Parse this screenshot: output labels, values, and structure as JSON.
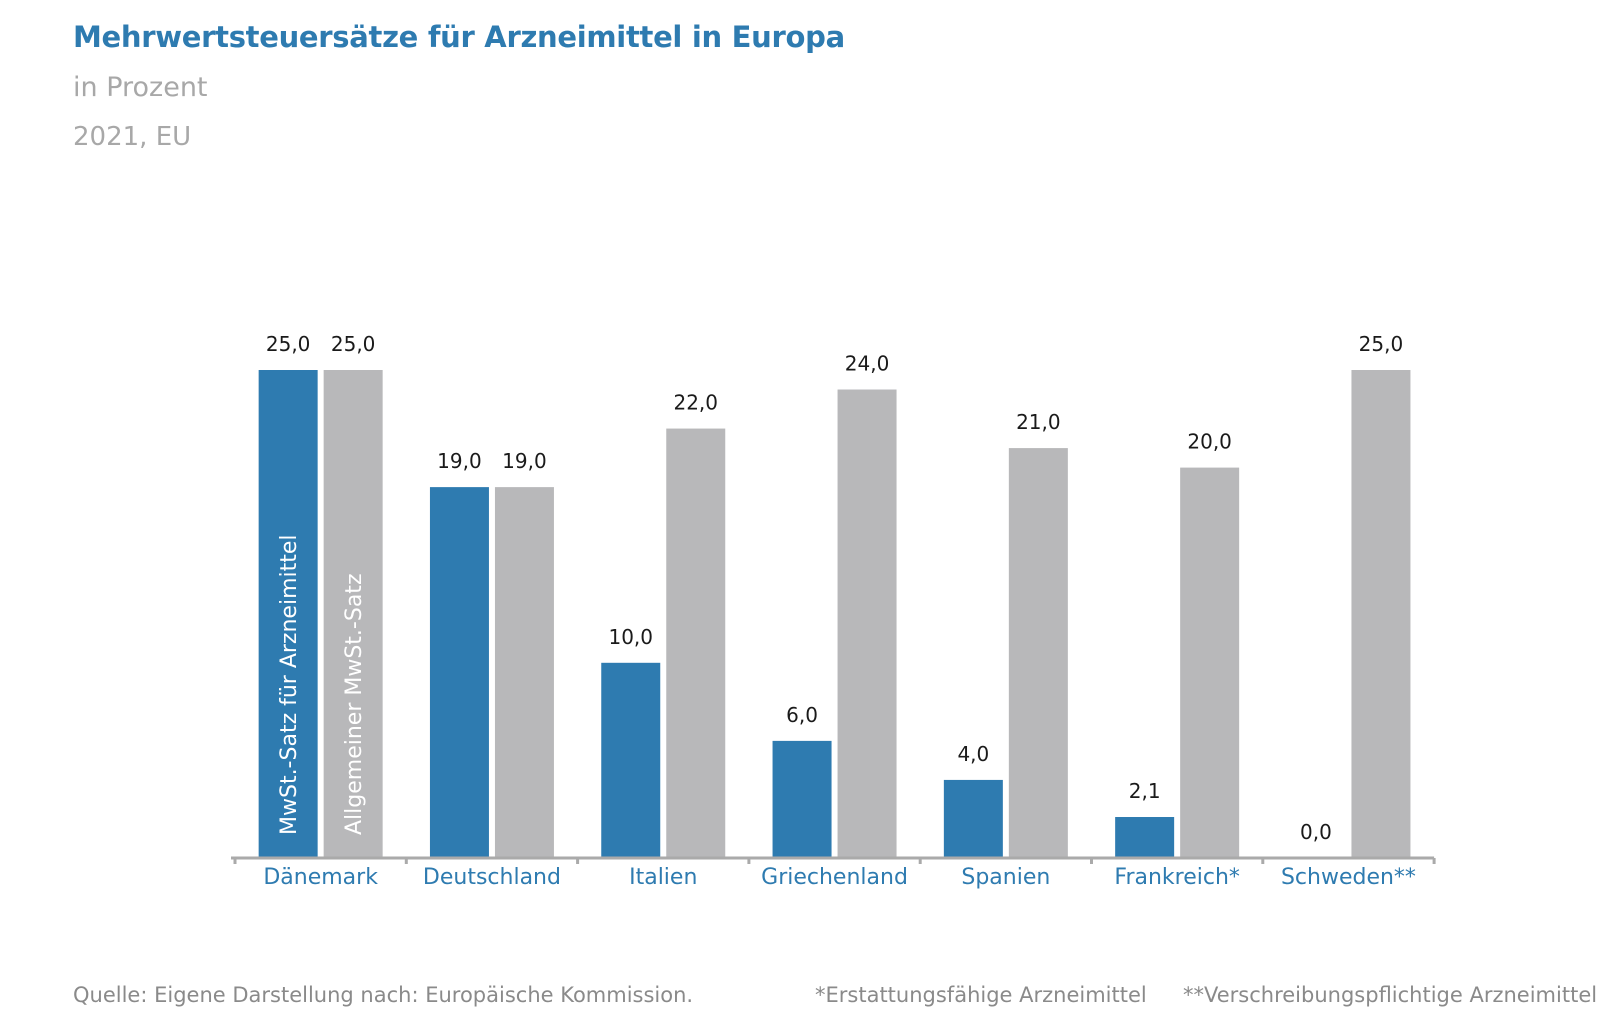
{
  "header": {
    "title": "Mehrwertsteuersätze für Arzneimittel in Europa",
    "subtitle": "in Prozent",
    "year": "2021, EU"
  },
  "footer": {
    "source": "Quelle: Eigene Darstellung nach: Europäische Kommission.",
    "note1": "*Erstattungsfähige Arzneimittel",
    "note2": "**Verschreibungspflichtige Arzneimittel"
  },
  "colors": {
    "series1": "#2e7bb0",
    "series2": "#b8b8ba",
    "axis": "#aaaaaa",
    "label": "#2e7bb0"
  },
  "chart_data": {
    "type": "bar",
    "title": "Mehrwertsteuersätze für Arzneimittel in Europa",
    "ylabel": "in Prozent",
    "ylim": [
      0,
      25
    ],
    "categories": [
      "Dänemark",
      "Deutschland",
      "Italien",
      "Griechenland",
      "Spanien",
      "Frankreich*",
      "Schweden**"
    ],
    "series": [
      {
        "name": "MwSt.-Satz für Arzneimittel",
        "values": [
          25.0,
          19.0,
          10.0,
          6.0,
          4.0,
          2.1,
          0.0
        ],
        "labels": [
          "25,0",
          "19,0",
          "10,0",
          "6,0",
          "4,0",
          "2,1",
          "0,0"
        ]
      },
      {
        "name": "Allgemeiner MwSt.-Satz",
        "values": [
          25.0,
          19.0,
          22.0,
          24.0,
          21.0,
          20.0,
          25.0
        ],
        "labels": [
          "25,0",
          "19,0",
          "22,0",
          "24,0",
          "21,0",
          "20,0",
          "25,0"
        ]
      }
    ]
  }
}
